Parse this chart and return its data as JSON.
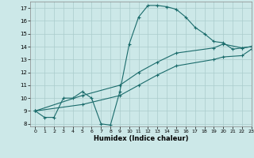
{
  "xlabel": "Humidex (Indice chaleur)",
  "xlim": [
    -0.5,
    23
  ],
  "ylim": [
    7.8,
    17.5
  ],
  "xtick_labels": [
    "0",
    "1",
    "2",
    "3",
    "4",
    "5",
    "6",
    "7",
    "8",
    "9",
    "10",
    "11",
    "12",
    "13",
    "14",
    "15",
    "16",
    "17",
    "18",
    "19",
    "20",
    "21",
    "22",
    "23"
  ],
  "xticks": [
    0,
    1,
    2,
    3,
    4,
    5,
    6,
    7,
    8,
    9,
    10,
    11,
    12,
    13,
    14,
    15,
    16,
    17,
    18,
    19,
    20,
    21,
    22,
    23
  ],
  "yticks": [
    8,
    9,
    10,
    11,
    12,
    13,
    14,
    15,
    16,
    17
  ],
  "background_color": "#cce8e8",
  "grid_color": "#aacccc",
  "line_color": "#1a6b6b",
  "line1_x": [
    0,
    1,
    2,
    3,
    4,
    5,
    6,
    7,
    8,
    9,
    10,
    11,
    12,
    13,
    14,
    15,
    16,
    17,
    18,
    19,
    20,
    21,
    22,
    23
  ],
  "line1_y": [
    9.0,
    8.5,
    8.5,
    10.0,
    10.0,
    10.5,
    10.0,
    8.0,
    7.9,
    10.5,
    14.2,
    16.3,
    17.2,
    17.2,
    17.1,
    16.9,
    16.3,
    15.5,
    15.0,
    14.4,
    14.3,
    13.8,
    13.9,
    14.0
  ],
  "line2_x": [
    0,
    5,
    9,
    11,
    13,
    15,
    19,
    20,
    22,
    23
  ],
  "line2_y": [
    9.0,
    10.2,
    11.0,
    12.0,
    12.8,
    13.5,
    13.9,
    14.2,
    13.9,
    14.0
  ],
  "line3_x": [
    0,
    5,
    9,
    11,
    13,
    15,
    19,
    20,
    22,
    23
  ],
  "line3_y": [
    9.0,
    9.5,
    10.2,
    11.0,
    11.8,
    12.5,
    13.0,
    13.2,
    13.3,
    13.8
  ]
}
